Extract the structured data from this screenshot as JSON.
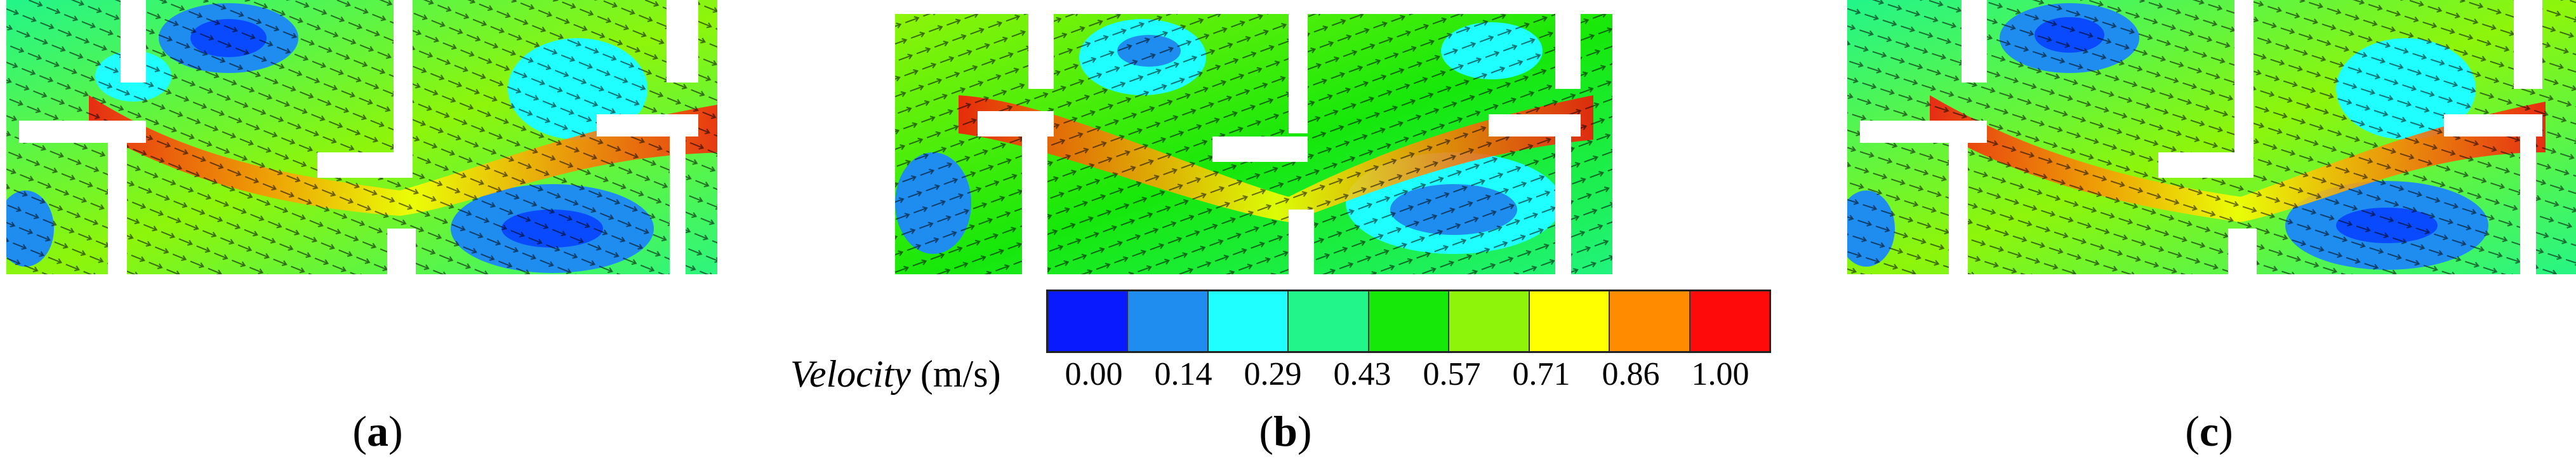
{
  "panels": [
    {
      "id": "a",
      "caption_letter": "a"
    },
    {
      "id": "b",
      "caption_letter": "b"
    },
    {
      "id": "c",
      "caption_letter": "c"
    }
  ],
  "colorbar": {
    "title_italic": "Velocity",
    "title_unit": "(m/s)",
    "ticks": [
      "0.00",
      "0.14",
      "0.29",
      "0.43",
      "0.57",
      "0.71",
      "0.86",
      "1.00"
    ],
    "colors": [
      "#0a1aff",
      "#1f8df0",
      "#1fffff",
      "#22f58a",
      "#16e80a",
      "#8ef50a",
      "#ffff00",
      "#ff8c00",
      "#ff0a0a"
    ]
  },
  "caption_open": "(",
  "caption_close": ")"
}
